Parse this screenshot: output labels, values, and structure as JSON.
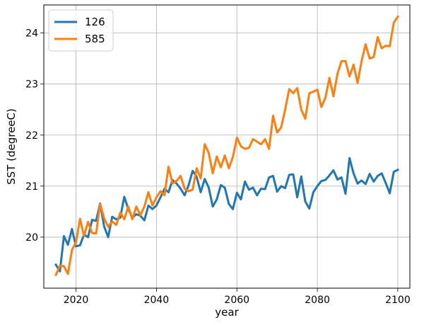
{
  "chart_data": {
    "type": "line",
    "title": "",
    "xlabel": "year",
    "ylabel": "SST (degreeC)",
    "xlim": [
      2012,
      2103
    ],
    "ylim": [
      19.0,
      24.55
    ],
    "xticks": [
      2020,
      2040,
      2060,
      2080,
      2100
    ],
    "yticks": [
      20,
      21,
      22,
      23,
      24
    ],
    "grid": true,
    "legend_position": "top-left",
    "x": [
      2015,
      2016,
      2017,
      2018,
      2019,
      2020,
      2021,
      2022,
      2023,
      2024,
      2025,
      2026,
      2027,
      2028,
      2029,
      2030,
      2031,
      2032,
      2033,
      2034,
      2035,
      2036,
      2037,
      2038,
      2039,
      2040,
      2041,
      2042,
      2043,
      2044,
      2045,
      2046,
      2047,
      2048,
      2049,
      2050,
      2051,
      2052,
      2053,
      2054,
      2055,
      2056,
      2057,
      2058,
      2059,
      2060,
      2061,
      2062,
      2063,
      2064,
      2065,
      2066,
      2067,
      2068,
      2069,
      2070,
      2071,
      2072,
      2073,
      2074,
      2075,
      2076,
      2077,
      2078,
      2079,
      2080,
      2081,
      2082,
      2083,
      2084,
      2085,
      2086,
      2087,
      2088,
      2089,
      2090,
      2091,
      2092,
      2093,
      2094,
      2095,
      2096,
      2097,
      2098,
      2099,
      2100
    ],
    "series": [
      {
        "name": "126",
        "color": "#1f77b4",
        "values": [
          19.46,
          19.33,
          20.02,
          19.85,
          20.16,
          19.82,
          19.84,
          20.05,
          20.0,
          20.34,
          20.32,
          20.66,
          20.21,
          20.0,
          20.4,
          20.35,
          20.38,
          20.79,
          20.55,
          20.38,
          20.45,
          20.42,
          20.33,
          20.62,
          20.55,
          20.62,
          20.78,
          20.95,
          20.88,
          21.12,
          21.05,
          20.95,
          20.82,
          21.02,
          21.3,
          21.18,
          20.88,
          21.14,
          20.97,
          20.6,
          20.74,
          21.02,
          20.97,
          20.65,
          20.55,
          20.87,
          20.74,
          21.09,
          20.93,
          20.97,
          20.82,
          20.95,
          20.94,
          21.17,
          21.2,
          20.89,
          21.0,
          20.96,
          21.22,
          21.23,
          20.78,
          21.19,
          20.7,
          20.56,
          20.88,
          21.0,
          21.1,
          21.12,
          21.21,
          21.31,
          21.13,
          21.17,
          20.85,
          21.55,
          21.25,
          21.05,
          21.11,
          21.04,
          21.24,
          21.09,
          21.2,
          21.25,
          21.06,
          20.86,
          21.28,
          21.32
        ]
      },
      {
        "name": "585",
        "color": "#ff7f0e",
        "values": [
          19.26,
          19.44,
          19.43,
          19.28,
          19.75,
          19.9,
          20.36,
          20.02,
          20.3,
          20.08,
          20.07,
          20.65,
          20.37,
          20.2,
          20.31,
          20.24,
          20.48,
          20.35,
          20.6,
          20.35,
          20.6,
          20.43,
          20.6,
          20.88,
          20.62,
          20.78,
          20.9,
          20.82,
          21.38,
          21.05,
          21.1,
          21.2,
          20.95,
          20.9,
          20.93,
          21.35,
          21.15,
          21.82,
          21.65,
          21.25,
          21.58,
          21.37,
          21.6,
          21.35,
          21.57,
          21.95,
          21.78,
          21.73,
          21.75,
          21.92,
          21.87,
          21.82,
          21.92,
          21.73,
          22.38,
          22.05,
          22.15,
          22.5,
          22.9,
          22.82,
          22.92,
          22.5,
          22.32,
          22.82,
          22.85,
          22.89,
          22.55,
          22.73,
          23.12,
          22.76,
          23.2,
          23.45,
          23.45,
          23.15,
          23.38,
          23.02,
          23.45,
          23.78,
          23.5,
          23.53,
          23.92,
          23.7,
          23.75,
          23.74,
          24.2,
          24.32
        ]
      }
    ]
  }
}
